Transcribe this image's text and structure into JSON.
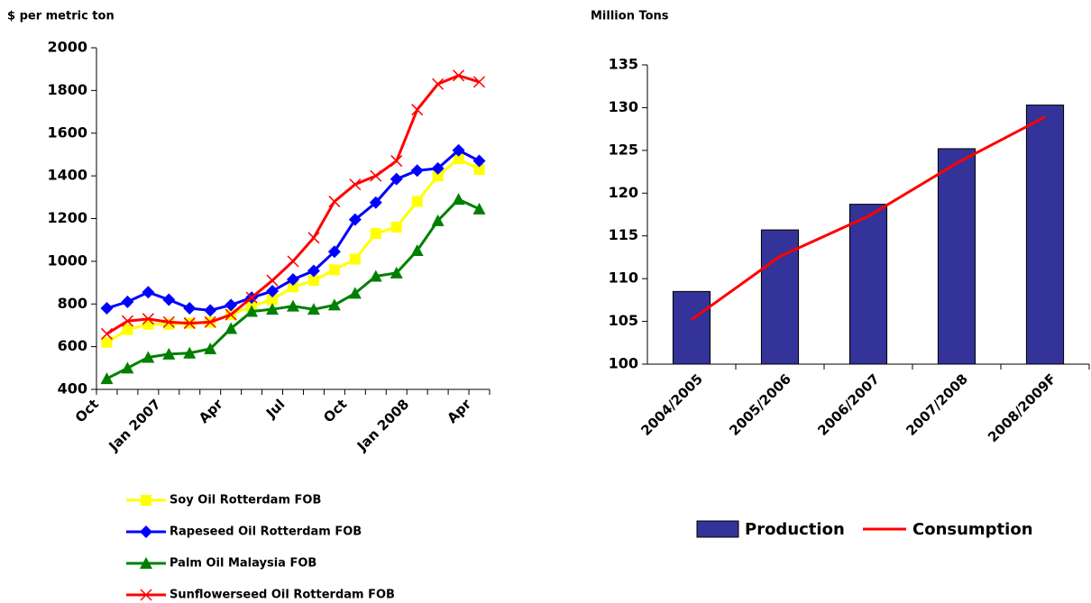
{
  "chart_data": [
    {
      "type": "line",
      "ylabel": "$ per metric ton",
      "categories": [
        "Oct",
        null,
        null,
        "Jan 2007",
        null,
        null,
        "Apr",
        null,
        null,
        "Jul",
        null,
        null,
        "Oct",
        null,
        null,
        "Jan 2008",
        null,
        null,
        "Apr"
      ],
      "ylim": [
        400,
        2000
      ],
      "yticks": [
        400,
        600,
        800,
        1000,
        1200,
        1400,
        1600,
        1800,
        2000
      ],
      "series": [
        {
          "name": "Soy Oil Rotterdam FOB",
          "color": "#ffff00",
          "marker": "square",
          "values": [
            620,
            680,
            705,
            705,
            710,
            715,
            750,
            790,
            820,
            880,
            910,
            960,
            1010,
            1130,
            1160,
            1280,
            1400,
            1480,
            1430
          ]
        },
        {
          "name": "Rapeseed Oil Rotterdam FOB",
          "color": "#0000ff",
          "marker": "diamond",
          "values": [
            780,
            810,
            855,
            820,
            780,
            770,
            795,
            830,
            860,
            915,
            955,
            1045,
            1195,
            1275,
            1385,
            1425,
            1435,
            1520,
            1470
          ]
        },
        {
          "name": "Palm Oil Malaysia FOB",
          "color": "#008000",
          "marker": "triangle",
          "values": [
            450,
            500,
            550,
            565,
            570,
            590,
            685,
            765,
            775,
            790,
            775,
            795,
            850,
            930,
            945,
            1050,
            1190,
            1290,
            1245
          ]
        },
        {
          "name": "Sunflowerseed Oil Rotterdam FOB",
          "color": "#ff0000",
          "marker": "x",
          "values": [
            660,
            720,
            730,
            715,
            710,
            715,
            750,
            830,
            910,
            1000,
            1110,
            1280,
            1360,
            1400,
            1470,
            1710,
            1830,
            1870,
            1840
          ]
        }
      ]
    },
    {
      "type": "bar",
      "ylabel": "Million Tons",
      "categories": [
        "2004/2005",
        "2005/2006",
        "2006/2007",
        "2007/2008",
        "2008/2009F"
      ],
      "ylim": [
        100,
        135
      ],
      "yticks": [
        100,
        105,
        110,
        115,
        120,
        125,
        130,
        135
      ],
      "series": [
        {
          "name": "Production",
          "kind": "bar",
          "color": "#333399",
          "values": [
            108.5,
            115.7,
            118.7,
            125.2,
            130.3
          ]
        },
        {
          "name": "Consumption",
          "kind": "line",
          "color": "#ff0000",
          "values": [
            105.2,
            112.6,
            117.3,
            123.5,
            128.9
          ]
        }
      ]
    }
  ]
}
